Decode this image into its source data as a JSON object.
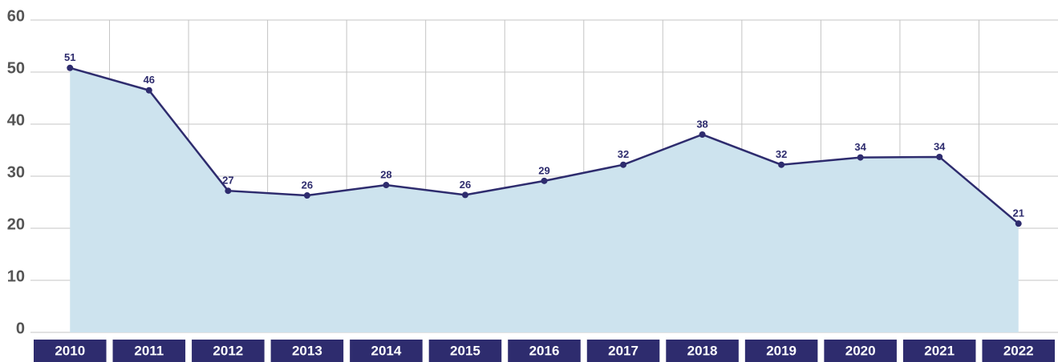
{
  "chart_data": {
    "type": "area",
    "categories": [
      "2010",
      "2011",
      "2012",
      "2013",
      "2014",
      "2015",
      "2016",
      "2017",
      "2018",
      "2019",
      "2020",
      "2021",
      "2022"
    ],
    "values": [
      50.8,
      46.5,
      27.2,
      26.3,
      28.3,
      26.4,
      29.1,
      32.2,
      38.0,
      32.2,
      33.6,
      33.7,
      20.9
    ],
    "value_labels": [
      "51",
      "46",
      "27",
      "26",
      "28",
      "26",
      "29",
      "32",
      "38",
      "32",
      "34",
      "34",
      "21"
    ],
    "color": "#2e2c6e",
    "fill": "#cde3ee",
    "ylim": [
      0,
      60
    ],
    "yticks": [
      0,
      10,
      20,
      30,
      40,
      50,
      60
    ],
    "grid": true
  }
}
